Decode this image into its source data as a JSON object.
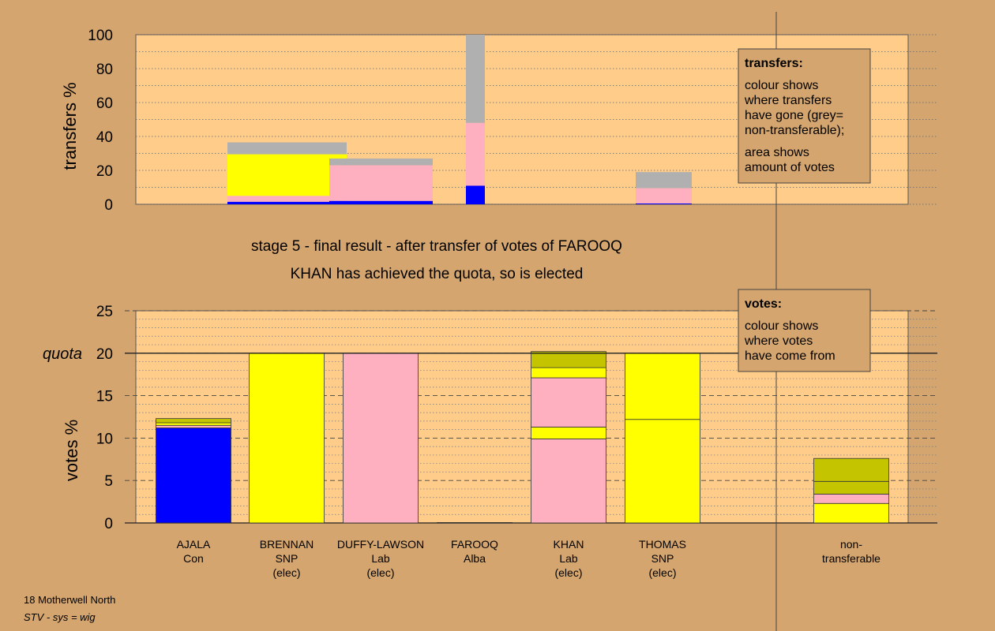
{
  "colors": {
    "background": "#d4a56e",
    "plot_area": "#ffcc8a",
    "Con": "#0000ff",
    "SNP": "#ffff00",
    "Lab": "#ffb0c0",
    "Alba": "#c4c400",
    "non_transferable": "#b0b0b0"
  },
  "chart_data": [
    {
      "type": "bar",
      "stacked": true,
      "ylabel": "transfers %",
      "ylim": [
        0,
        100
      ],
      "yticks": [
        0,
        20,
        40,
        60,
        80,
        100
      ],
      "grid": true,
      "legend_box": {
        "title": "transfers:",
        "lines": [
          "colour shows",
          "where transfers",
          "have gone (grey=",
          "non-transferable);"
        ],
        "lines2": [
          "area shows",
          "amount of votes"
        ]
      },
      "bars": [
        {
          "candidate": "BRENNAN",
          "segments": [
            {
              "party": "Con",
              "value": 1.5
            },
            {
              "party": "Lab",
              "value": 3.5
            },
            {
              "party": "SNP",
              "value": 24.5
            },
            {
              "party": "non_transferable",
              "value": 7
            }
          ]
        },
        {
          "candidate": "DUFFY-LAWSON",
          "segments": [
            {
              "party": "Con",
              "value": 2
            },
            {
              "party": "Lab",
              "value": 21
            },
            {
              "party": "non_transferable",
              "value": 4
            }
          ]
        },
        {
          "candidate": "FAROOQ",
          "segments": [
            {
              "party": "Con",
              "value": 11
            },
            {
              "party": "Lab",
              "value": 37
            },
            {
              "party": "non_transferable",
              "value": 52
            }
          ]
        },
        {
          "candidate": "THOMAS",
          "segments": [
            {
              "party": "Con",
              "value": 0.5
            },
            {
              "party": "Lab",
              "value": 9
            },
            {
              "party": "non_transferable",
              "value": 9.5
            }
          ]
        }
      ]
    },
    {
      "type": "bar",
      "stacked": true,
      "ylabel": "votes %",
      "ylim": [
        0,
        25
      ],
      "yticks": [
        0,
        5,
        10,
        15,
        20,
        25
      ],
      "quota": 20,
      "quota_label": "quota",
      "grid": true,
      "legend_box": {
        "title": "votes:",
        "lines": [
          "colour shows",
          "where votes",
          "have come from"
        ]
      },
      "categories": [
        {
          "name": "AJALA",
          "party": "Con",
          "status": ""
        },
        {
          "name": "BRENNAN",
          "party": "SNP",
          "status": "(elec)"
        },
        {
          "name": "DUFFY-LAWSON",
          "party": "Lab",
          "status": "(elec)"
        },
        {
          "name": "FAROOQ",
          "party": "Alba",
          "status": ""
        },
        {
          "name": "KHAN",
          "party": "Lab",
          "status": "(elec)"
        },
        {
          "name": "THOMAS",
          "party": "SNP",
          "status": "(elec)"
        },
        {
          "name": "",
          "party": "",
          "status": ""
        },
        {
          "name": "non-",
          "party": "transferable",
          "status": ""
        }
      ],
      "bars": [
        {
          "candidate": "AJALA",
          "segments": [
            {
              "party": "Con",
              "value": 11.2
            },
            {
              "party": "Lab",
              "value": 0.3
            },
            {
              "party": "SNP",
              "value": 0.3
            },
            {
              "party": "Alba",
              "value": 0.5
            }
          ]
        },
        {
          "candidate": "BRENNAN",
          "segments": [
            {
              "party": "SNP",
              "value": 20
            }
          ]
        },
        {
          "candidate": "DUFFY-LAWSON",
          "segments": [
            {
              "party": "Lab",
              "value": 20
            }
          ]
        },
        {
          "candidate": "FAROOQ",
          "segments": [
            {
              "party": "Alba",
              "value": 0.05
            }
          ]
        },
        {
          "candidate": "KHAN",
          "segments": [
            {
              "party": "Lab",
              "value": 9.9
            },
            {
              "party": "SNP",
              "value": 1.4
            },
            {
              "party": "Lab",
              "value": 5.8
            },
            {
              "party": "SNP",
              "value": 1.2
            },
            {
              "party": "Alba",
              "value": 1.9
            }
          ]
        },
        {
          "candidate": "THOMAS",
          "segments": [
            {
              "party": "SNP",
              "value": 12.2
            },
            {
              "party": "SNP",
              "value": 7.8
            }
          ]
        },
        {
          "candidate": "",
          "segments": []
        },
        {
          "candidate": "non-transferable",
          "segments": [
            {
              "party": "SNP",
              "value": 2.3
            },
            {
              "party": "Lab",
              "value": 1.1
            },
            {
              "party": "Alba",
              "value": 1.5
            },
            {
              "party": "Alba",
              "value": 2.7
            }
          ]
        }
      ]
    }
  ],
  "stage_title": "stage 5 - final result - after transfer of votes of FAROOQ",
  "stage_subtitle": "KHAN has achieved the quota, so is elected",
  "footer": {
    "line1": "18 Motherwell North",
    "line2": "STV - sys = wig"
  }
}
